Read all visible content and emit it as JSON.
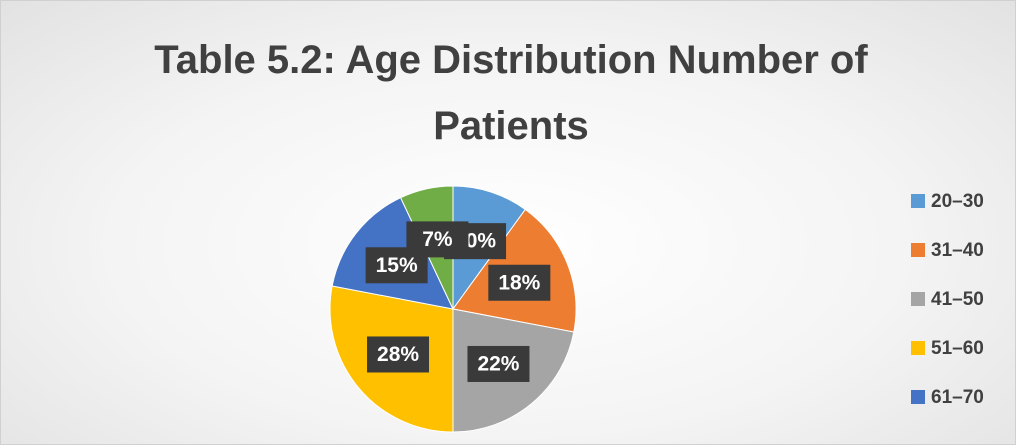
{
  "chart_data": {
    "type": "pie",
    "title": "Table 5.2: Age Distribution Number of Patients",
    "categories": [
      "20–30",
      "31–40",
      "41–50",
      "51–60",
      "61–70",
      null
    ],
    "values": [
      10,
      18,
      22,
      28,
      15,
      7
    ],
    "value_labels": [
      "10%",
      "18%",
      "22%",
      "28%",
      "15%",
      "7%"
    ],
    "colors": [
      "#5b9bd5",
      "#ed7d31",
      "#a5a5a5",
      "#ffc000",
      "#4472c4",
      "#70ad47"
    ],
    "legend": "right"
  }
}
